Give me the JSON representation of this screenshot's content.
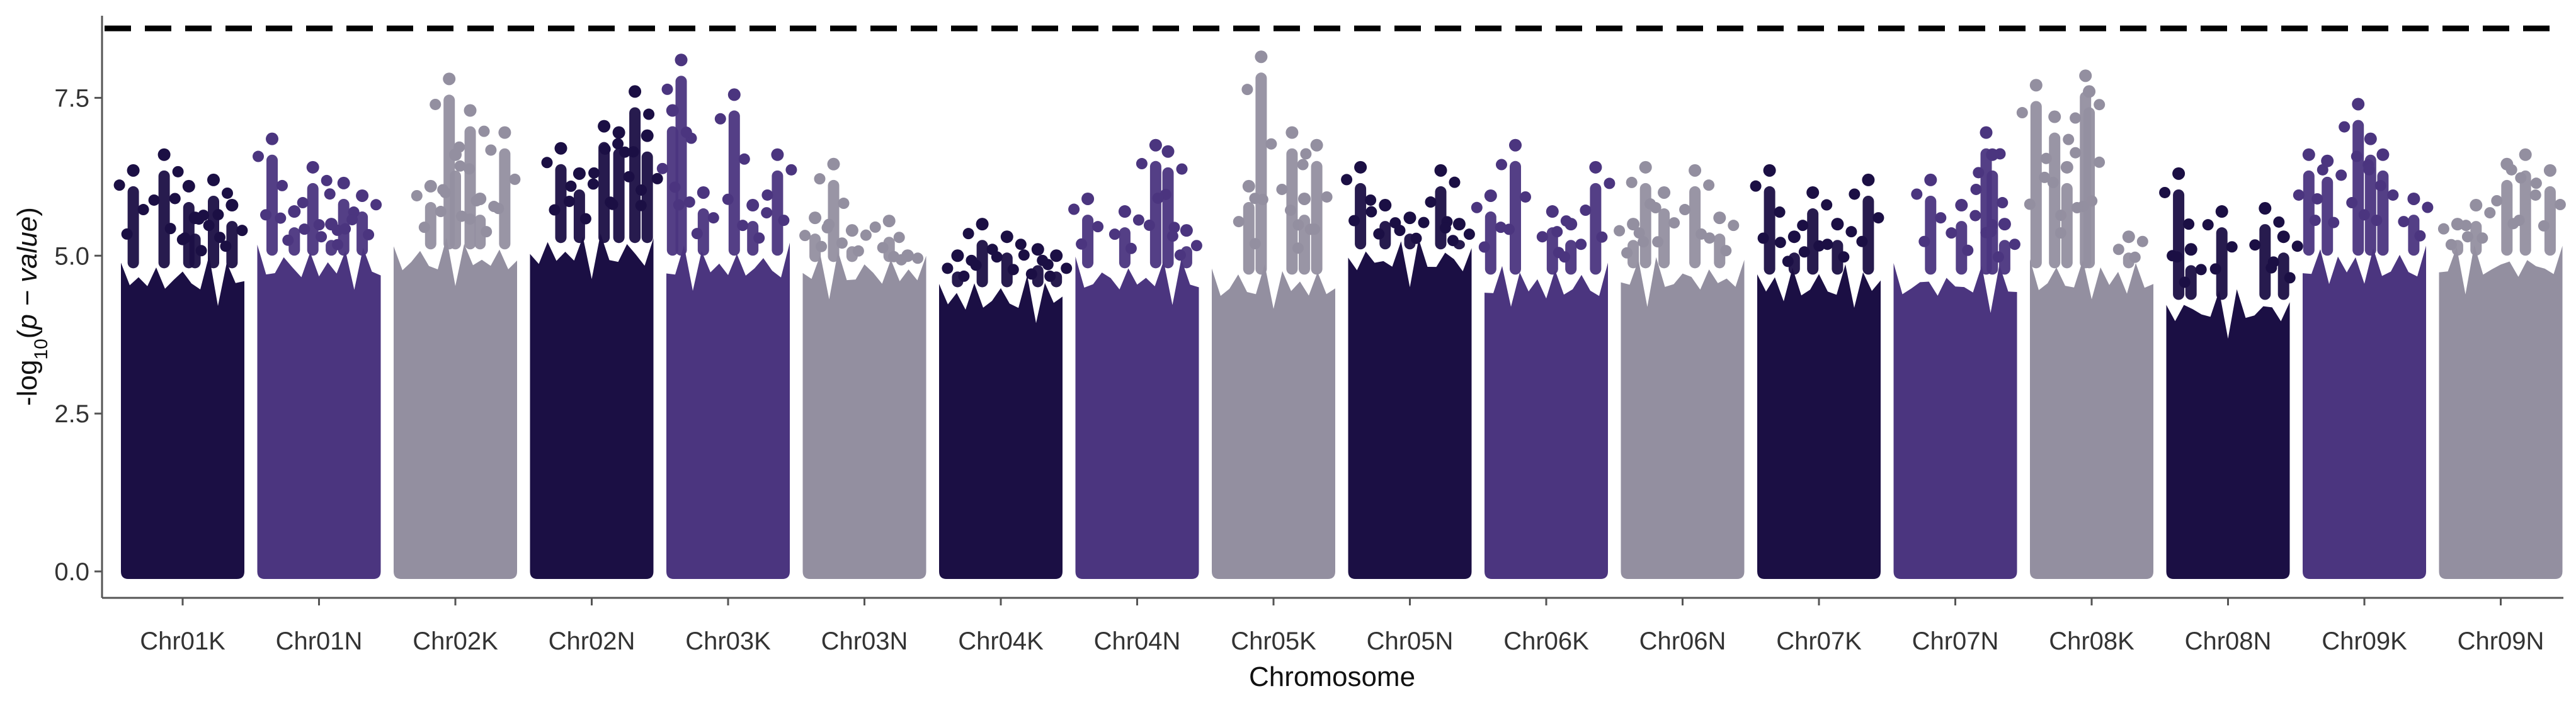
{
  "chart_data": {
    "type": "scatter",
    "subtype": "manhattan",
    "title": "",
    "xlabel": "Chromosome",
    "ylabel_parts": {
      "prefix": "-log",
      "sub": "10",
      "open": "(",
      "italic": "p − value",
      "close": ")"
    },
    "ylim": [
      0,
      8.8
    ],
    "yticks": [
      0.0,
      2.5,
      5.0,
      7.5
    ],
    "ytick_labels": [
      "0.0",
      "2.5",
      "5.0",
      "7.5"
    ],
    "threshold": 8.6,
    "threshold_style": "dashed",
    "grid": false,
    "legend": "none",
    "colors": [
      "#1b0f44",
      "#4b357f",
      "#938fa0"
    ],
    "threshold_color": "#000000",
    "categories": [
      {
        "name": "Chr01K",
        "top": 4.6,
        "peaks": [
          [
            0.1,
            6.35
          ],
          [
            0.35,
            6.6
          ],
          [
            0.55,
            6.1
          ],
          [
            0.75,
            6.2
          ],
          [
            0.9,
            5.8
          ],
          [
            0.6,
            5.6
          ]
        ]
      },
      {
        "name": "Chr01N",
        "top": 4.8,
        "peaks": [
          [
            0.12,
            6.85
          ],
          [
            0.45,
            6.4
          ],
          [
            0.7,
            6.15
          ],
          [
            0.85,
            5.95
          ],
          [
            0.3,
            5.7
          ],
          [
            0.6,
            5.5
          ]
        ]
      },
      {
        "name": "Chr02K",
        "top": 4.9,
        "peaks": [
          [
            0.45,
            7.8
          ],
          [
            0.62,
            7.3
          ],
          [
            0.9,
            6.95
          ],
          [
            0.5,
            6.6
          ],
          [
            0.3,
            6.1
          ],
          [
            0.7,
            5.9
          ]
        ]
      },
      {
        "name": "Chr02N",
        "top": 5.0,
        "peaks": [
          [
            0.25,
            6.7
          ],
          [
            0.6,
            7.05
          ],
          [
            0.72,
            6.95
          ],
          [
            0.85,
            7.6
          ],
          [
            0.95,
            6.9
          ],
          [
            0.4,
            6.3
          ]
        ]
      },
      {
        "name": "Chr03K",
        "top": 4.8,
        "peaks": [
          [
            0.12,
            8.1
          ],
          [
            0.05,
            7.3
          ],
          [
            0.55,
            7.55
          ],
          [
            0.9,
            6.6
          ],
          [
            0.3,
            6.0
          ],
          [
            0.7,
            5.8
          ]
        ]
      },
      {
        "name": "Chr03N",
        "top": 4.7,
        "peaks": [
          [
            0.25,
            6.45
          ],
          [
            0.1,
            5.6
          ],
          [
            0.7,
            5.55
          ],
          [
            0.4,
            5.4
          ],
          [
            0.85,
            5.0
          ]
        ]
      },
      {
        "name": "Chr04K",
        "top": 4.3,
        "peaks": [
          [
            0.35,
            5.5
          ],
          [
            0.55,
            5.3
          ],
          [
            0.8,
            5.1
          ],
          [
            0.15,
            5.0
          ],
          [
            0.95,
            5.0
          ]
        ]
      },
      {
        "name": "Chr04N",
        "top": 4.6,
        "peaks": [
          [
            0.65,
            6.75
          ],
          [
            0.75,
            6.65
          ],
          [
            0.1,
            5.9
          ],
          [
            0.4,
            5.7
          ],
          [
            0.9,
            5.4
          ]
        ]
      },
      {
        "name": "Chr05K",
        "top": 4.5,
        "peaks": [
          [
            0.4,
            8.15
          ],
          [
            0.65,
            6.95
          ],
          [
            0.85,
            6.75
          ],
          [
            0.3,
            6.1
          ],
          [
            0.75,
            5.9
          ]
        ]
      },
      {
        "name": "Chr05N",
        "top": 4.9,
        "peaks": [
          [
            0.1,
            6.4
          ],
          [
            0.75,
            6.35
          ],
          [
            0.3,
            5.8
          ],
          [
            0.5,
            5.6
          ],
          [
            0.9,
            5.5
          ]
        ]
      },
      {
        "name": "Chr06K",
        "top": 4.5,
        "peaks": [
          [
            0.25,
            6.75
          ],
          [
            0.9,
            6.4
          ],
          [
            0.05,
            5.95
          ],
          [
            0.55,
            5.7
          ],
          [
            0.7,
            5.5
          ]
        ]
      },
      {
        "name": "Chr06N",
        "top": 4.6,
        "peaks": [
          [
            0.2,
            6.4
          ],
          [
            0.6,
            6.35
          ],
          [
            0.35,
            6.0
          ],
          [
            0.8,
            5.6
          ],
          [
            0.1,
            5.5
          ]
        ]
      },
      {
        "name": "Chr07K",
        "top": 4.5,
        "peaks": [
          [
            0.1,
            6.35
          ],
          [
            0.45,
            6.0
          ],
          [
            0.9,
            6.2
          ],
          [
            0.65,
            5.5
          ],
          [
            0.3,
            5.3
          ]
        ]
      },
      {
        "name": "Chr07N",
        "top": 4.5,
        "peaks": [
          [
            0.3,
            6.2
          ],
          [
            0.75,
            6.95
          ],
          [
            0.8,
            6.6
          ],
          [
            0.55,
            5.8
          ],
          [
            0.9,
            5.5
          ]
        ]
      },
      {
        "name": "Chr08K",
        "top": 4.6,
        "peaks": [
          [
            0.05,
            7.7
          ],
          [
            0.45,
            7.85
          ],
          [
            0.48,
            7.6
          ],
          [
            0.2,
            7.2
          ],
          [
            0.3,
            6.4
          ],
          [
            0.8,
            5.3
          ]
        ]
      },
      {
        "name": "Chr08N",
        "top": 4.1,
        "peaks": [
          [
            0.1,
            6.3
          ],
          [
            0.8,
            5.75
          ],
          [
            0.45,
            5.7
          ],
          [
            0.95,
            5.3
          ],
          [
            0.2,
            5.1
          ]
        ]
      },
      {
        "name": "Chr09K",
        "top": 4.8,
        "peaks": [
          [
            0.45,
            7.4
          ],
          [
            0.05,
            6.6
          ],
          [
            0.55,
            6.85
          ],
          [
            0.2,
            6.5
          ],
          [
            0.65,
            6.6
          ],
          [
            0.9,
            5.9
          ]
        ]
      },
      {
        "name": "Chr09N",
        "top": 4.8,
        "peaks": [
          [
            0.7,
            6.6
          ],
          [
            0.55,
            6.45
          ],
          [
            0.9,
            6.35
          ],
          [
            0.3,
            5.8
          ],
          [
            0.15,
            5.5
          ]
        ]
      }
    ]
  }
}
